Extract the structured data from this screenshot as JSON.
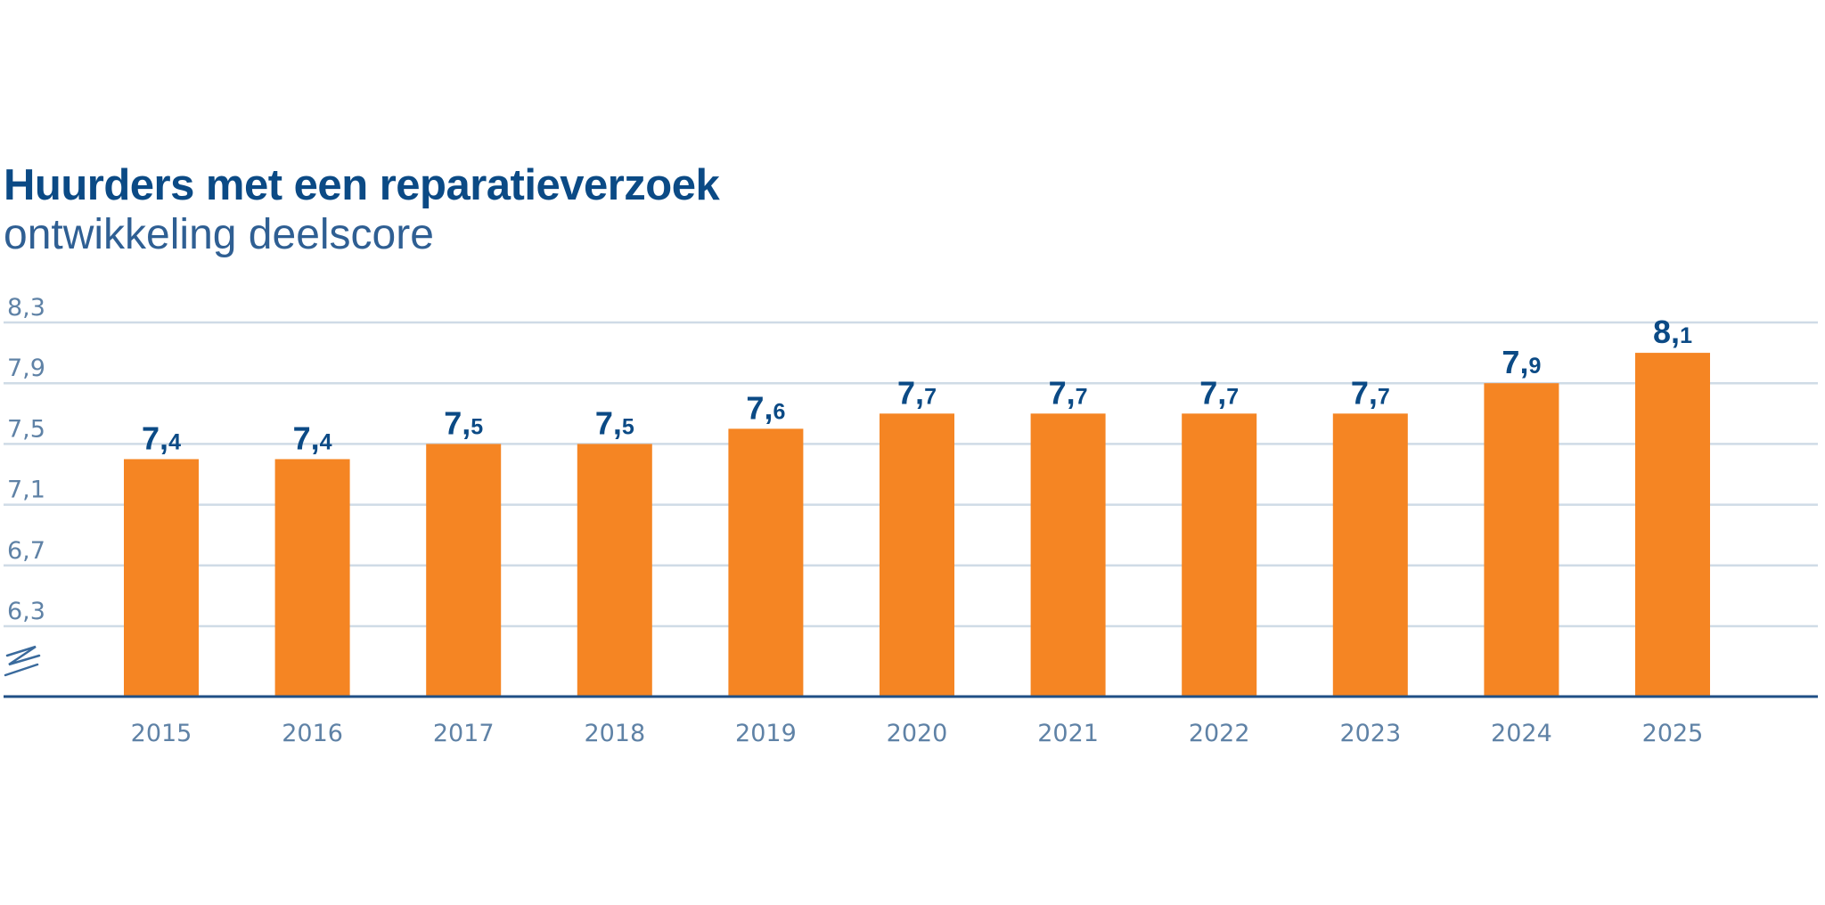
{
  "chart_data": {
    "type": "bar",
    "title": "Huurders met een reparatieverzoek",
    "subtitle": "ontwikkeling deelscore",
    "categories": [
      "2015",
      "2016",
      "2017",
      "2018",
      "2019",
      "2020",
      "2021",
      "2022",
      "2023",
      "2024",
      "2025"
    ],
    "values": [
      7.4,
      7.4,
      7.5,
      7.5,
      7.6,
      7.7,
      7.7,
      7.7,
      7.7,
      7.9,
      8.1
    ],
    "value_labels": [
      "7,4",
      "7,4",
      "7,5",
      "7,5",
      "7,6",
      "7,7",
      "7,7",
      "7,7",
      "7,7",
      "7,9",
      "8,1"
    ],
    "yticks": [
      6.3,
      6.7,
      7.1,
      7.5,
      7.9,
      8.3
    ],
    "ytick_labels": [
      "6,3",
      "6,7",
      "7,1",
      "7,5",
      "7,9",
      "8,3"
    ],
    "ylim": [
      6.3,
      8.3
    ],
    "axis_break": true,
    "grid": true,
    "xlabel": "",
    "ylabel": "",
    "colors": {
      "bar": "#f58523",
      "label": "#0b4a85",
      "grid": "#cfdbe6",
      "axis": "#1f4f86",
      "tick": "#5f82a6"
    }
  }
}
